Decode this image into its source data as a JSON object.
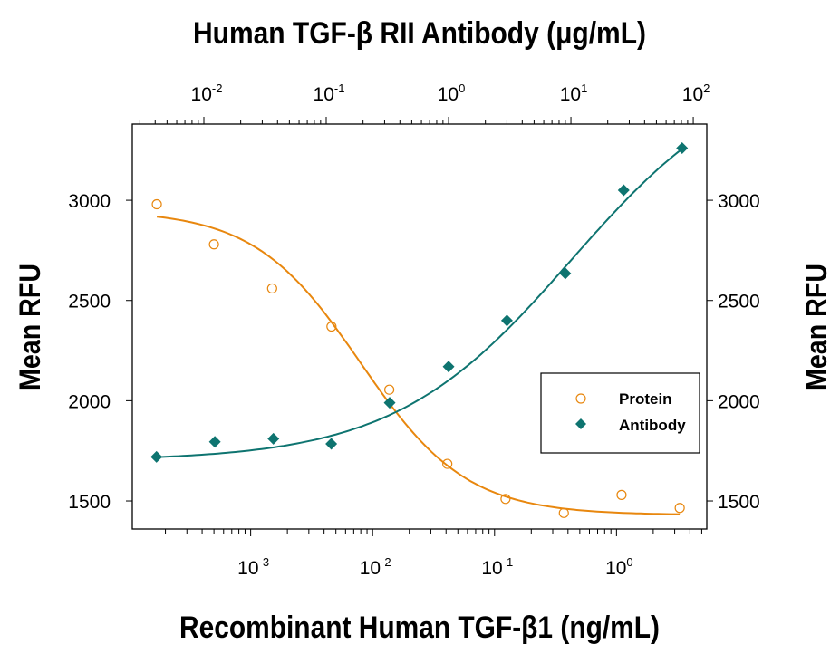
{
  "chart_data": {
    "type": "scatter",
    "top_xlabel": "Human TGF-β RII Antibody (μg/mL)",
    "xlabel": "Recombinant Human TGF-β1 (ng/mL)",
    "ylabel_left": "Mean RFU",
    "ylabel_right": "Mean RFU",
    "x_scale": "log",
    "xlim_bottom": [
      0.000107,
      5.5
    ],
    "xlim_top": [
      0.0026,
      129
    ],
    "ylim": [
      1360,
      3380
    ],
    "grid": false,
    "legend_position": "center-right",
    "bottom_ticks": [
      {
        "base": "10",
        "exp": "-3",
        "value": 0.001
      },
      {
        "base": "10",
        "exp": "-2",
        "value": 0.01
      },
      {
        "base": "10",
        "exp": "-1",
        "value": 0.1
      },
      {
        "base": "10",
        "exp": "0",
        "value": 1
      }
    ],
    "top_ticks": [
      {
        "base": "10",
        "exp": "-2",
        "value": 0.01
      },
      {
        "base": "10",
        "exp": "-1",
        "value": 0.1
      },
      {
        "base": "10",
        "exp": "0",
        "value": 1
      },
      {
        "base": "10",
        "exp": "1",
        "value": 10
      },
      {
        "base": "10",
        "exp": "2",
        "value": 100
      }
    ],
    "y_ticks": [
      "1500",
      "2000",
      "2500",
      "3000"
    ],
    "series": [
      {
        "name": "Protein",
        "axis": "bottom",
        "marker": "open-circle",
        "color": "#E8870E",
        "x": [
          0.00017,
          0.0005,
          0.0015,
          0.0046,
          0.0137,
          0.041,
          0.123,
          0.37,
          1.1,
          3.3
        ],
        "y": [
          2980,
          2780,
          2560,
          2370,
          2055,
          1685,
          1510,
          1440,
          1530,
          1465
        ],
        "fit": {
          "model": "4PL",
          "bottom": 1430,
          "top": 2950,
          "log_ec50": -2.1,
          "hill": 1.0
        }
      },
      {
        "name": "Antibody",
        "axis": "top",
        "marker": "filled-diamond",
        "color": "#0E7470",
        "x": [
          0.0041,
          0.0123,
          0.037,
          0.11,
          0.33,
          1.0,
          3.0,
          9.0,
          27,
          81
        ],
        "y": [
          1720,
          1795,
          1810,
          1785,
          1990,
          2170,
          2400,
          2635,
          3050,
          3260
        ],
        "fit": {
          "model": "4PL",
          "bottom": 1700,
          "top": 3700,
          "log_ec50": 1.0,
          "hill": 0.6
        }
      }
    ]
  }
}
